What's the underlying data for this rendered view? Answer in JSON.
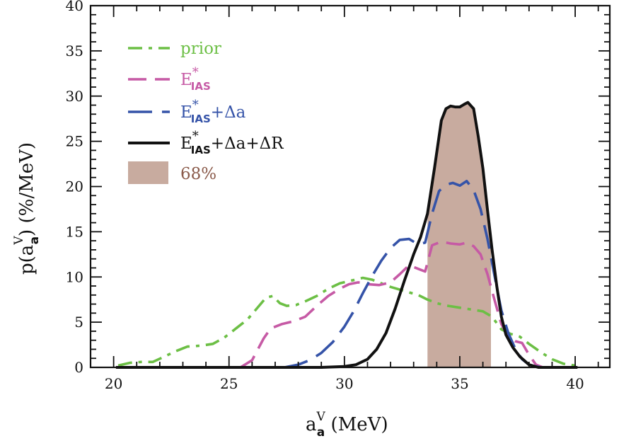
{
  "chart_data": {
    "type": "line",
    "title": "",
    "xlabel": {
      "base": "a",
      "sup": "V",
      "sub": "a",
      "suffix": " (MeV)"
    },
    "ylabel": {
      "prefix": "p(a",
      "sup": "V",
      "sub": "a",
      "suffix": ")  (%/MeV)"
    },
    "xlim": [
      19,
      41.5
    ],
    "ylim": [
      0,
      40
    ],
    "xticks": [
      20,
      25,
      30,
      35,
      40
    ],
    "xtick_labels": [
      "20",
      "25",
      "30",
      "35",
      "40"
    ],
    "yticks": [
      0,
      5,
      10,
      15,
      20,
      25,
      30,
      35,
      40
    ],
    "ytick_labels": [
      "0",
      "5",
      "10",
      "15",
      "20",
      "25",
      "30",
      "35",
      "40"
    ],
    "grid": false,
    "legend_position": "top-left",
    "band": {
      "name": "68%",
      "x_range": [
        33.6,
        36.35
      ],
      "color": "#c8ab9f",
      "text_color": "#8a5a4a"
    },
    "series": [
      {
        "name": "prior",
        "legend": {
          "base": "prior"
        },
        "color": "#6cbf45",
        "dash": "dashdot",
        "x": [
          20.2,
          20.7,
          21.2,
          21.7,
          22.2,
          22.7,
          23.2,
          23.8,
          24.3,
          24.8,
          25.3,
          25.8,
          26.2,
          26.6,
          26.9,
          27.2,
          27.5,
          27.9,
          28.3,
          28.8,
          29.3,
          29.8,
          30.3,
          30.8,
          31.2,
          31.6,
          32.0,
          32.4,
          32.8,
          33.2,
          33.6,
          34.0,
          34.5,
          35.0,
          35.5,
          36.0,
          36.4,
          36.8,
          37.2,
          37.6,
          38.0,
          38.5,
          39.0,
          39.5,
          40.0
        ],
        "y": [
          0.2,
          0.5,
          0.6,
          0.6,
          1.2,
          1.8,
          2.3,
          2.4,
          2.6,
          3.3,
          4.3,
          5.3,
          6.5,
          7.7,
          7.9,
          7.1,
          6.8,
          6.9,
          7.3,
          7.9,
          8.7,
          9.3,
          9.6,
          9.9,
          9.7,
          9.3,
          8.9,
          8.6,
          8.3,
          8.0,
          7.5,
          7.1,
          6.8,
          6.6,
          6.4,
          6.2,
          5.6,
          4.2,
          3.7,
          3.4,
          2.6,
          1.7,
          0.9,
          0.4,
          0.2
        ]
      },
      {
        "name": "E*IAS",
        "legend": {
          "base": "E",
          "sup": "*",
          "sub": "IAS",
          "suffix": ""
        },
        "color": "#c65aa5",
        "dash": "dashed",
        "x": [
          25.5,
          26.0,
          26.5,
          26.8,
          27.3,
          27.8,
          28.3,
          28.8,
          29.3,
          29.8,
          30.2,
          30.6,
          31.0,
          31.5,
          32.0,
          32.4,
          32.8,
          33.2,
          33.5,
          33.8,
          34.2,
          34.6,
          35.0,
          35.3,
          35.6,
          35.9,
          36.2,
          36.5,
          36.8,
          37.1,
          37.4,
          37.7,
          38.0,
          38.3,
          38.6
        ],
        "y": [
          0,
          0.8,
          3.2,
          4.3,
          4.8,
          5.1,
          5.6,
          6.8,
          7.9,
          8.7,
          9.2,
          9.4,
          9.2,
          9.1,
          9.4,
          10.3,
          11.3,
          10.9,
          10.6,
          13.5,
          13.9,
          13.7,
          13.6,
          13.8,
          13.4,
          12.5,
          10.3,
          7.5,
          4.8,
          3.4,
          2.9,
          2.7,
          1.4,
          0.3,
          0
        ]
      },
      {
        "name": "E*IAS+Δa",
        "legend": {
          "base": "E",
          "sup": "*",
          "sub": "IAS",
          "suffix": "+Δa"
        },
        "color": "#3553a8",
        "dash": "longdash",
        "x": [
          27.4,
          28.0,
          28.5,
          29.0,
          29.5,
          30.0,
          30.4,
          30.8,
          31.2,
          31.6,
          32.0,
          32.4,
          32.8,
          33.2,
          33.5,
          33.8,
          34.1,
          34.4,
          34.7,
          35.0,
          35.3,
          35.6,
          35.9,
          36.2,
          36.5,
          36.8,
          37.1,
          37.4,
          37.7,
          38.0,
          38.3,
          38.6
        ],
        "y": [
          0,
          0.3,
          0.8,
          1.6,
          2.8,
          4.5,
          6.2,
          8.2,
          10.1,
          11.8,
          13.2,
          14.1,
          14.2,
          13.6,
          13.8,
          17.0,
          19.5,
          20.2,
          20.4,
          20.1,
          20.6,
          19.6,
          17.5,
          14.2,
          10.2,
          6.3,
          3.8,
          2.1,
          0.9,
          0.3,
          0.1,
          0
        ]
      },
      {
        "name": "E*IAS+Δa+ΔR",
        "legend": {
          "base": "E",
          "sup": "*",
          "sub": "IAS",
          "suffix": "+Δa+ΔR"
        },
        "color": "#111111",
        "dash": "solid",
        "x": [
          20.1,
          26.0,
          29.0,
          30.0,
          30.5,
          31.0,
          31.4,
          31.8,
          32.2,
          32.6,
          33.0,
          33.3,
          33.6,
          33.9,
          34.2,
          34.4,
          34.6,
          34.8,
          35.0,
          35.2,
          35.35,
          35.6,
          35.8,
          36.0,
          36.2,
          36.4,
          36.6,
          36.8,
          37.0,
          37.3,
          37.6,
          38.0,
          38.4,
          38.8,
          39.5,
          40.1
        ],
        "y": [
          0,
          0,
          0,
          0.1,
          0.3,
          0.9,
          2.0,
          3.8,
          6.5,
          9.6,
          12.5,
          14.4,
          17.0,
          22.0,
          27.3,
          28.6,
          28.9,
          28.8,
          28.8,
          29.1,
          29.3,
          28.6,
          25.5,
          22.0,
          17.4,
          13.0,
          9.0,
          5.6,
          3.6,
          2.2,
          1.2,
          0.3,
          0,
          0,
          0,
          0
        ]
      }
    ]
  }
}
